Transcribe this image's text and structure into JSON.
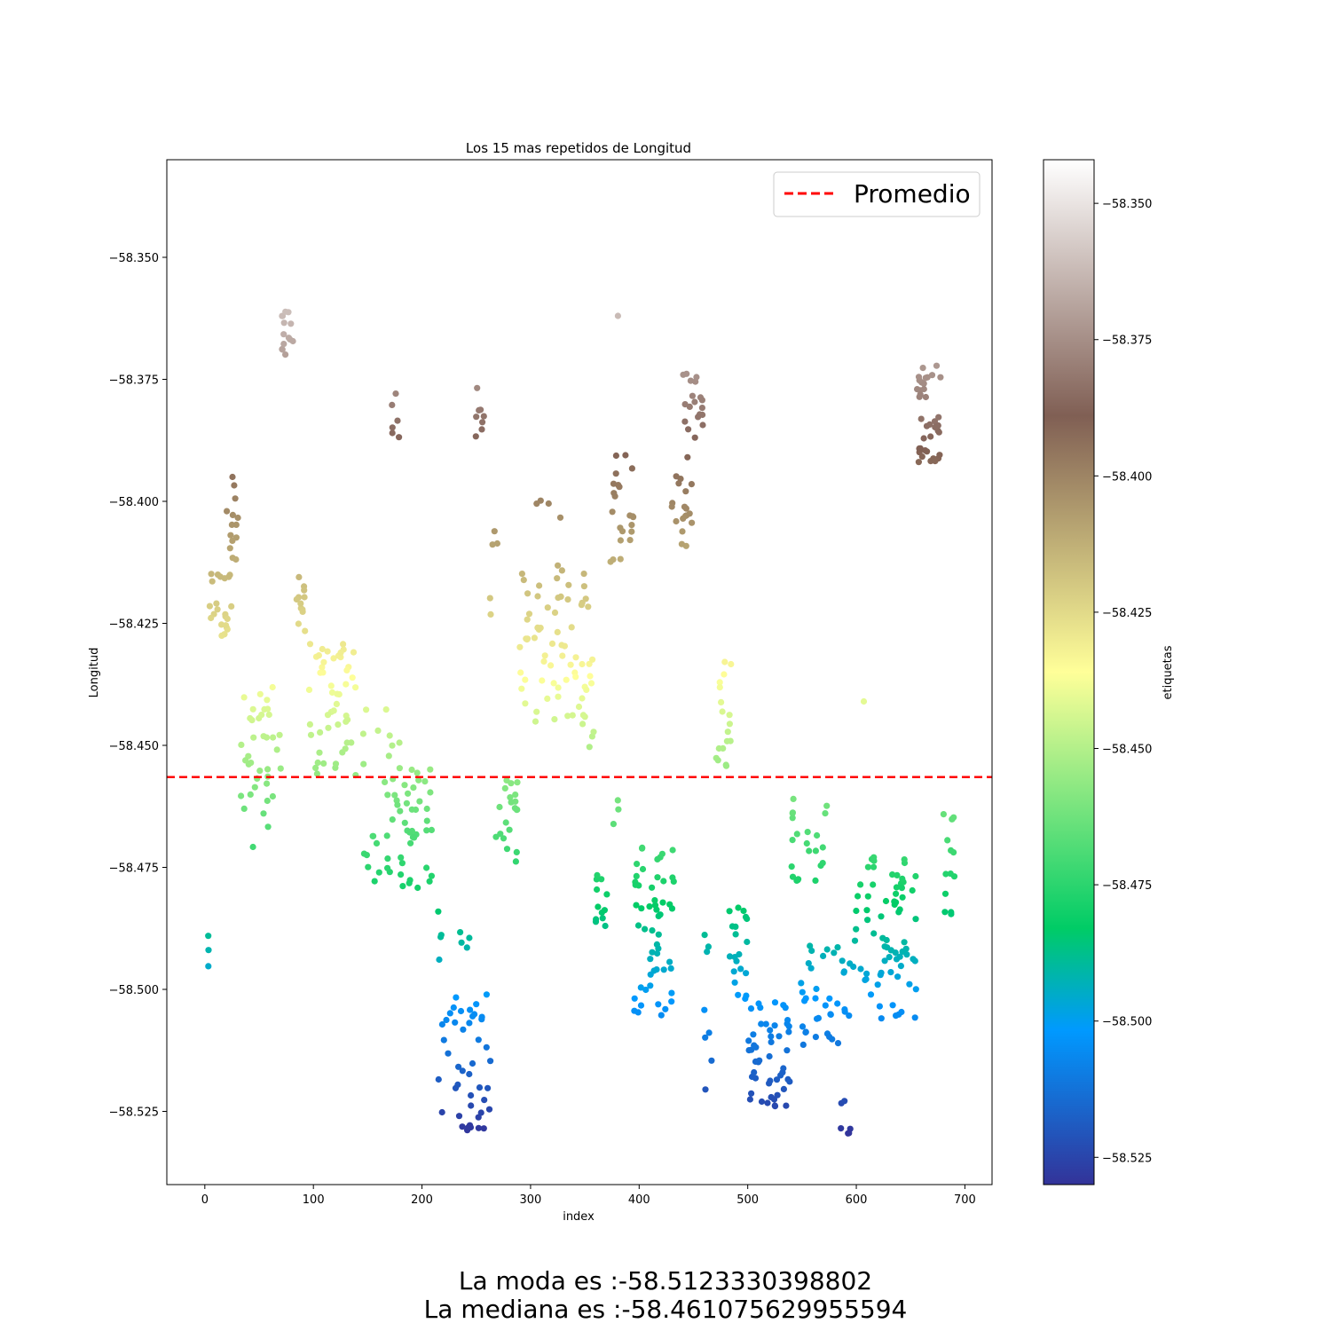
{
  "chart_data": {
    "type": "scatter",
    "title": "Los 15 mas repetidos de Longitud",
    "xlabel": "index",
    "ylabel": "Longitud",
    "xlim": [
      -35,
      725
    ],
    "ylim": [
      -58.54,
      -58.33
    ],
    "x_ticks": [
      0,
      100,
      200,
      300,
      400,
      500,
      600,
      700
    ],
    "y_ticks": [
      -58.35,
      -58.375,
      -58.4,
      -58.425,
      -58.45,
      -58.475,
      -58.5,
      -58.525
    ],
    "y_tick_labels": [
      "−58.350",
      "−58.375",
      "−58.400",
      "−58.425",
      "−58.450",
      "−58.475",
      "−58.500",
      "−58.525"
    ],
    "x_tick_labels": [
      "0",
      "100",
      "200",
      "300",
      "400",
      "500",
      "600",
      "700"
    ],
    "mean_line": {
      "value": -58.4565,
      "color": "#ff0000",
      "style": "dashed",
      "label": "Promedio"
    },
    "legend": {
      "placement": "top-right",
      "entries": [
        "Promedio"
      ]
    },
    "colorbar": {
      "label": "etiquetas",
      "colormap": "terrain",
      "range": [
        -58.53,
        -58.342
      ],
      "ticks": [
        -58.35,
        -58.375,
        -58.4,
        -58.425,
        -58.45,
        -58.475,
        -58.5,
        -58.525
      ],
      "tick_labels": [
        "−58.350",
        "−58.375",
        "−58.400",
        "−58.425",
        "−58.450",
        "−58.475",
        "−58.500",
        "−58.525"
      ]
    },
    "grid": false,
    "clusters": [
      {
        "x": [
          0,
          5
        ],
        "y": [
          -58.498,
          -58.489
        ],
        "n": 3
      },
      {
        "x": [
          2,
          25
        ],
        "y": [
          -58.429,
          -58.413
        ],
        "n": 22
      },
      {
        "x": [
          20,
          33
        ],
        "y": [
          -58.412,
          -58.394
        ],
        "n": 14
      },
      {
        "x": [
          33,
          70
        ],
        "y": [
          -58.471,
          -58.438
        ],
        "n": 38
      },
      {
        "x": [
          70,
          82
        ],
        "y": [
          -58.37,
          -58.361
        ],
        "n": 14
      },
      {
        "x": [
          83,
          95
        ],
        "y": [
          -58.427,
          -58.413
        ],
        "n": 12
      },
      {
        "x": [
          95,
          140
        ],
        "y": [
          -58.457,
          -58.429
        ],
        "n": 50
      },
      {
        "x": [
          145,
          180
        ],
        "y": [
          -58.478,
          -58.442
        ],
        "n": 30
      },
      {
        "x": [
          172,
          180
        ],
        "y": [
          -58.388,
          -58.377
        ],
        "n": 6
      },
      {
        "x": [
          180,
          210
        ],
        "y": [
          -58.48,
          -58.454
        ],
        "n": 36
      },
      {
        "x": [
          210,
          245
        ],
        "y": [
          -58.494,
          -58.482
        ],
        "n": 8
      },
      {
        "x": [
          215,
          265
        ],
        "y": [
          -58.529,
          -58.501
        ],
        "n": 45
      },
      {
        "x": [
          248,
          258
        ],
        "y": [
          -58.39,
          -58.369
        ],
        "n": 8
      },
      {
        "x": [
          260,
          270
        ],
        "y": [
          -58.426,
          -58.402
        ],
        "n": 5
      },
      {
        "x": [
          268,
          288
        ],
        "y": [
          -58.474,
          -58.457
        ],
        "n": 20
      },
      {
        "x": [
          290,
          355
        ],
        "y": [
          -58.446,
          -58.412
        ],
        "n": 65
      },
      {
        "x": [
          305,
          330
        ],
        "y": [
          -58.404,
          -58.398
        ],
        "n": 4
      },
      {
        "x": [
          348,
          360
        ],
        "y": [
          -58.451,
          -58.43
        ],
        "n": 8
      },
      {
        "x": [
          360,
          372
        ],
        "y": [
          -58.487,
          -58.474
        ],
        "n": 12
      },
      {
        "x": [
          372,
          395
        ],
        "y": [
          -58.413,
          -58.388
        ],
        "n": 22
      },
      {
        "x": [
          375,
          382
        ],
        "y": [
          -58.467,
          -58.461
        ],
        "n": 3
      },
      {
        "x": [
          380,
          382
        ],
        "y": [
          -58.362,
          -58.362
        ],
        "n": 1
      },
      {
        "x": [
          395,
          432
        ],
        "y": [
          -58.506,
          -58.47
        ],
        "n": 55
      },
      {
        "x": [
          430,
          450
        ],
        "y": [
          -58.41,
          -58.394
        ],
        "n": 18
      },
      {
        "x": [
          440,
          460
        ],
        "y": [
          -58.391,
          -58.371
        ],
        "n": 20
      },
      {
        "x": [
          460,
          470
        ],
        "y": [
          -58.524,
          -58.486
        ],
        "n": 8
      },
      {
        "x": [
          470,
          485
        ],
        "y": [
          -58.456,
          -58.432
        ],
        "n": 18
      },
      {
        "x": [
          480,
          500
        ],
        "y": [
          -58.503,
          -58.481
        ],
        "n": 20
      },
      {
        "x": [
          500,
          540
        ],
        "y": [
          -58.524,
          -58.502
        ],
        "n": 50
      },
      {
        "x": [
          540,
          575
        ],
        "y": [
          -58.478,
          -58.46
        ],
        "n": 22
      },
      {
        "x": [
          545,
          590
        ],
        "y": [
          -58.512,
          -58.491
        ],
        "n": 35
      },
      {
        "x": [
          585,
          595
        ],
        "y": [
          -58.53,
          -58.522
        ],
        "n": 6
      },
      {
        "x": [
          593,
          655
        ],
        "y": [
          -58.506,
          -58.47
        ],
        "n": 75
      },
      {
        "x": [
          605,
          607
        ],
        "y": [
          -58.441,
          -58.441
        ],
        "n": 1
      },
      {
        "x": [
          655,
          678
        ],
        "y": [
          -58.392,
          -58.372
        ],
        "n": 40
      },
      {
        "x": [
          678,
          692
        ],
        "y": [
          -58.487,
          -58.464
        ],
        "n": 14
      }
    ]
  },
  "stats": {
    "mode_text": "La moda es :-58.5123330398802",
    "median_text": "La mediana es :-58.461075629955594"
  }
}
